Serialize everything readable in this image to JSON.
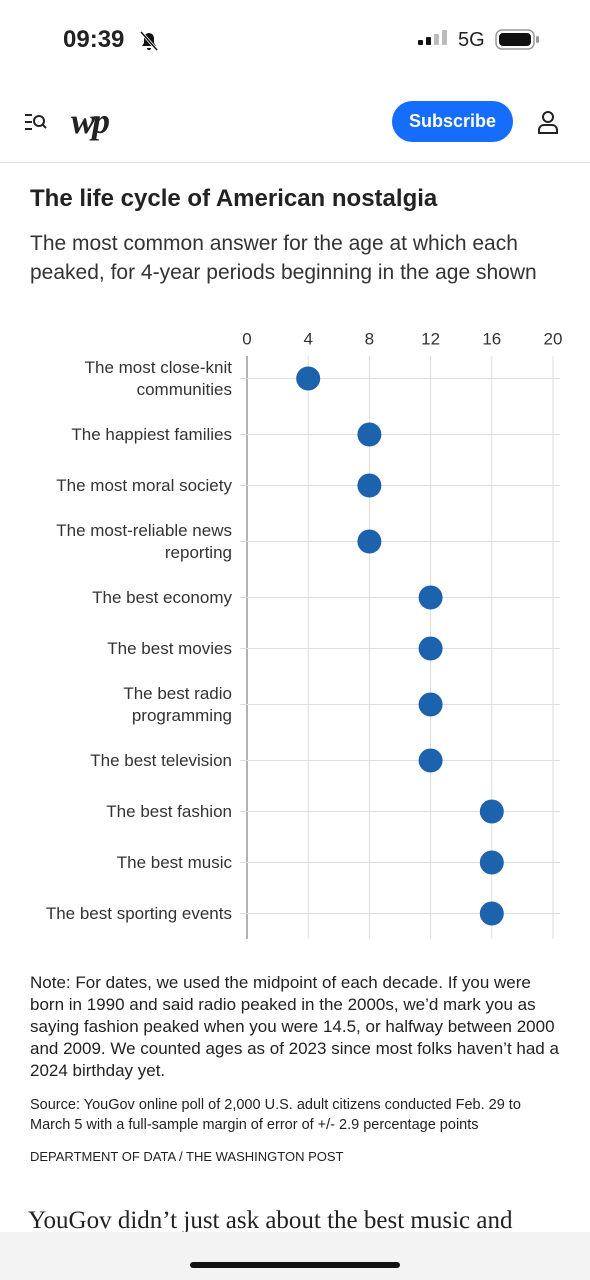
{
  "status_bar": {
    "time": "09:39",
    "network": "5G"
  },
  "header": {
    "logo": "wp",
    "button": "Subscribe"
  },
  "chart_data": {
    "type": "dot",
    "title": "The life cycle of American nostalgia",
    "subtitle": "The most common answer for the age at which each peaked, for 4-year periods beginning in the age shown",
    "categories": [
      "The most close-knit communities",
      "The happiest families",
      "The most moral society",
      "The most-reliable news reporting",
      "The best economy",
      "The best movies",
      "The best radio programming",
      "The best television",
      "The best fashion",
      "The best music",
      "The best sporting events"
    ],
    "values": [
      4,
      8,
      8,
      8,
      12,
      12,
      12,
      12,
      16,
      16,
      16
    ],
    "color": "#1d62ac",
    "xlim": [
      0,
      20
    ],
    "xticks": [
      0,
      4,
      8,
      12,
      16,
      20
    ],
    "grid": true
  },
  "note": "Note: For dates, we used the midpoint of each decade. If you were born in 1990 and said radio peaked in the 2000s, we’d mark you as saying fashion peaked when you were 14.5, or halfway between 2000 and 2009. We counted ages as of 2023 since most folks haven’t had a 2024 birthday yet.",
  "source": "Source: YouGov online poll of 2,000 U.S. adult citizens conducted Feb. 29 to March 5 with a full-sample margin of error of +/- 2.9 percentage points",
  "credit": "DEPARTMENT OF DATA / THE WASHINGTON POST",
  "article_text": "YouGov didn’t just ask about the best music and"
}
